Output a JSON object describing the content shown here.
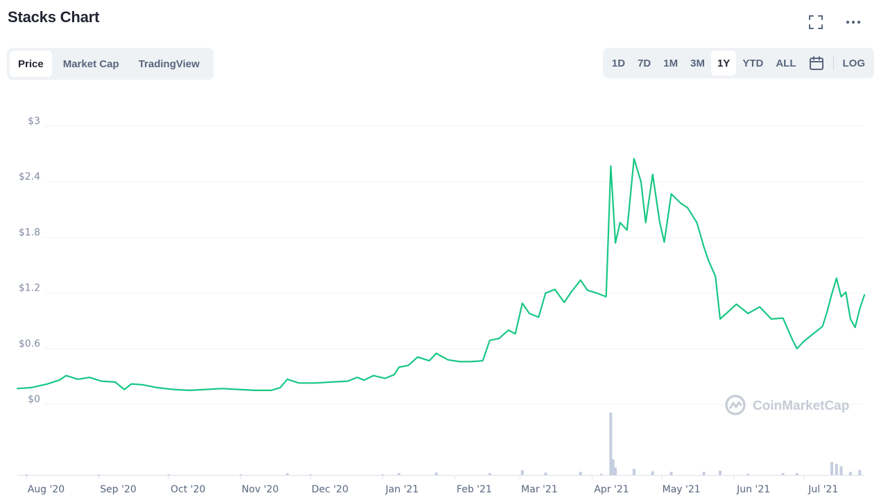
{
  "page_title": "Stacks Chart",
  "icons": {
    "fullscreen": "fullscreen-icon",
    "more": "more-icon",
    "calendar": "calendar-icon",
    "logo": "coinmarketcap-logo-icon"
  },
  "tabs": [
    {
      "label": "Price",
      "active": true
    },
    {
      "label": "Market Cap",
      "active": false
    },
    {
      "label": "TradingView",
      "active": false
    }
  ],
  "ranges": [
    {
      "label": "1D",
      "active": false
    },
    {
      "label": "7D",
      "active": false
    },
    {
      "label": "1M",
      "active": false
    },
    {
      "label": "3M",
      "active": false
    },
    {
      "label": "1Y",
      "active": true
    },
    {
      "label": "YTD",
      "active": false
    },
    {
      "label": "ALL",
      "active": false
    }
  ],
  "log_label": "LOG",
  "watermark": "CoinMarketCap",
  "colors": {
    "line": "#16c784",
    "volume": "#c5cde0",
    "grid": "#eff2f5",
    "axis": "#dde2ea"
  },
  "chart_data": {
    "type": "line",
    "y_ticks": [
      "$0",
      "$0.6",
      "$1.2",
      "$1.8",
      "$2.4",
      "$3"
    ],
    "ylim": [
      0,
      3
    ],
    "xlim": [
      "2020-07-28",
      "2021-07-27"
    ],
    "x_ticks": [
      {
        "label": "Aug '20",
        "date": "2020-08-01"
      },
      {
        "label": "Sep '20",
        "date": "2020-09-01"
      },
      {
        "label": "Oct '20",
        "date": "2020-10-01"
      },
      {
        "label": "Nov '20",
        "date": "2020-11-01"
      },
      {
        "label": "Dec '20",
        "date": "2020-12-01"
      },
      {
        "label": "Jan '21",
        "date": "2021-01-01"
      },
      {
        "label": "Feb '21",
        "date": "2021-02-01"
      },
      {
        "label": "Mar '21",
        "date": "2021-03-01"
      },
      {
        "label": "Apr '21",
        "date": "2021-04-01"
      },
      {
        "label": "May '21",
        "date": "2021-05-01"
      },
      {
        "label": "Jun '21",
        "date": "2021-06-01"
      },
      {
        "label": "Jul '21",
        "date": "2021-07-01"
      }
    ],
    "series": [
      {
        "points": [
          [
            "2020-07-28",
            0.17
          ],
          [
            "2020-08-03",
            0.18
          ],
          [
            "2020-08-10",
            0.22
          ],
          [
            "2020-08-15",
            0.26
          ],
          [
            "2020-08-18",
            0.31
          ],
          [
            "2020-08-23",
            0.27
          ],
          [
            "2020-08-28",
            0.29
          ],
          [
            "2020-09-02",
            0.25
          ],
          [
            "2020-09-08",
            0.24
          ],
          [
            "2020-09-12",
            0.16
          ],
          [
            "2020-09-15",
            0.22
          ],
          [
            "2020-09-20",
            0.21
          ],
          [
            "2020-09-26",
            0.18
          ],
          [
            "2020-10-03",
            0.16
          ],
          [
            "2020-10-10",
            0.15
          ],
          [
            "2020-10-17",
            0.16
          ],
          [
            "2020-10-24",
            0.17
          ],
          [
            "2020-10-31",
            0.16
          ],
          [
            "2020-11-07",
            0.15
          ],
          [
            "2020-11-14",
            0.15
          ],
          [
            "2020-11-18",
            0.18
          ],
          [
            "2020-11-21",
            0.27
          ],
          [
            "2020-11-26",
            0.23
          ],
          [
            "2020-12-03",
            0.23
          ],
          [
            "2020-12-10",
            0.24
          ],
          [
            "2020-12-17",
            0.25
          ],
          [
            "2020-12-21",
            0.29
          ],
          [
            "2020-12-24",
            0.26
          ],
          [
            "2020-12-28",
            0.31
          ],
          [
            "2021-01-02",
            0.28
          ],
          [
            "2021-01-06",
            0.32
          ],
          [
            "2021-01-08",
            0.4
          ],
          [
            "2021-01-12",
            0.42
          ],
          [
            "2021-01-16",
            0.51
          ],
          [
            "2021-01-21",
            0.47
          ],
          [
            "2021-01-24",
            0.55
          ],
          [
            "2021-01-29",
            0.48
          ],
          [
            "2021-02-03",
            0.46
          ],
          [
            "2021-02-08",
            0.46
          ],
          [
            "2021-02-13",
            0.47
          ],
          [
            "2021-02-16",
            0.69
          ],
          [
            "2021-02-20",
            0.71
          ],
          [
            "2021-02-24",
            0.8
          ],
          [
            "2021-02-27",
            0.76
          ],
          [
            "2021-03-02",
            1.09
          ],
          [
            "2021-03-05",
            0.98
          ],
          [
            "2021-03-09",
            0.94
          ],
          [
            "2021-03-12",
            1.2
          ],
          [
            "2021-03-16",
            1.24
          ],
          [
            "2021-03-20",
            1.1
          ],
          [
            "2021-03-23",
            1.21
          ],
          [
            "2021-03-27",
            1.34
          ],
          [
            "2021-03-30",
            1.23
          ],
          [
            "2021-04-03",
            1.2
          ],
          [
            "2021-04-07",
            1.16
          ],
          [
            "2021-04-09",
            2.57
          ],
          [
            "2021-04-11",
            1.74
          ],
          [
            "2021-04-13",
            1.96
          ],
          [
            "2021-04-16",
            1.88
          ],
          [
            "2021-04-19",
            2.65
          ],
          [
            "2021-04-22",
            2.4
          ],
          [
            "2021-04-24",
            1.96
          ],
          [
            "2021-04-27",
            2.48
          ],
          [
            "2021-04-30",
            1.97
          ],
          [
            "2021-05-02",
            1.75
          ],
          [
            "2021-05-05",
            2.27
          ],
          [
            "2021-05-09",
            2.17
          ],
          [
            "2021-05-12",
            2.12
          ],
          [
            "2021-05-16",
            1.96
          ],
          [
            "2021-05-19",
            1.7
          ],
          [
            "2021-05-21",
            1.55
          ],
          [
            "2021-05-24",
            1.38
          ],
          [
            "2021-05-26",
            0.92
          ],
          [
            "2021-05-30",
            1.01
          ],
          [
            "2021-06-02",
            1.08
          ],
          [
            "2021-06-07",
            0.98
          ],
          [
            "2021-06-12",
            1.05
          ],
          [
            "2021-06-17",
            0.92
          ],
          [
            "2021-06-22",
            0.93
          ],
          [
            "2021-06-26",
            0.7
          ],
          [
            "2021-06-28",
            0.6
          ],
          [
            "2021-07-01",
            0.68
          ],
          [
            "2021-07-05",
            0.76
          ],
          [
            "2021-07-09",
            0.84
          ],
          [
            "2021-07-11",
            1.0
          ],
          [
            "2021-07-13",
            1.19
          ],
          [
            "2021-07-15",
            1.36
          ],
          [
            "2021-07-17",
            1.16
          ],
          [
            "2021-07-19",
            1.21
          ],
          [
            "2021-07-21",
            0.92
          ],
          [
            "2021-07-23",
            0.83
          ],
          [
            "2021-07-25",
            1.03
          ],
          [
            "2021-07-27",
            1.18
          ]
        ]
      }
    ],
    "volume": {
      "points": [
        [
          "2020-08-01",
          0.01
        ],
        [
          "2020-09-01",
          0.01
        ],
        [
          "2020-10-01",
          0.01
        ],
        [
          "2020-11-01",
          0.01
        ],
        [
          "2020-11-21",
          0.03
        ],
        [
          "2020-12-01",
          0.01
        ],
        [
          "2021-01-01",
          0.01
        ],
        [
          "2021-01-08",
          0.03
        ],
        [
          "2021-01-24",
          0.04
        ],
        [
          "2021-02-16",
          0.03
        ],
        [
          "2021-03-02",
          0.08
        ],
        [
          "2021-03-12",
          0.04
        ],
        [
          "2021-03-27",
          0.05
        ],
        [
          "2021-04-05",
          0.02
        ],
        [
          "2021-04-09",
          1.0
        ],
        [
          "2021-04-10",
          0.25
        ],
        [
          "2021-04-11",
          0.12
        ],
        [
          "2021-04-19",
          0.1
        ],
        [
          "2021-04-27",
          0.06
        ],
        [
          "2021-05-05",
          0.05
        ],
        [
          "2021-05-19",
          0.05
        ],
        [
          "2021-05-26",
          0.07
        ],
        [
          "2021-06-07",
          0.02
        ],
        [
          "2021-06-22",
          0.03
        ],
        [
          "2021-06-28",
          0.03
        ],
        [
          "2021-07-13",
          0.21
        ],
        [
          "2021-07-15",
          0.18
        ],
        [
          "2021-07-17",
          0.14
        ],
        [
          "2021-07-21",
          0.05
        ],
        [
          "2021-07-25",
          0.08
        ]
      ]
    }
  }
}
